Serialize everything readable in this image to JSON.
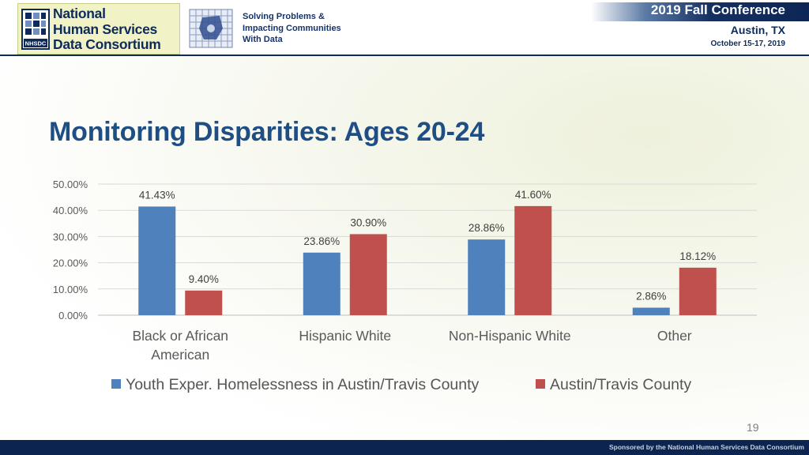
{
  "header": {
    "logo": {
      "lines": [
        "National",
        "Human Services",
        "Data Consortium"
      ],
      "mark_text": "NHSDC"
    },
    "tagline": [
      "Solving Problems &",
      "Impacting Communities",
      "With Data"
    ],
    "conference": {
      "title": "2019 Fall Conference",
      "city": "Austin, TX",
      "dates": "October 15-17, 2019"
    }
  },
  "slide": {
    "title": "Monitoring Disparities: Ages 20-24",
    "page_number": "19"
  },
  "footer": {
    "text": "Sponsored by the National Human Services Data Consortium"
  },
  "colors": {
    "series1": "#4f81bd",
    "series2": "#c0504d",
    "title": "#1f4e84",
    "navy": "#0d2b5a"
  },
  "chart_data": {
    "type": "bar",
    "categories": [
      [
        "Black or African",
        "American"
      ],
      [
        "Hispanic White"
      ],
      [
        "Non-Hispanic White"
      ],
      [
        "Other"
      ]
    ],
    "series": [
      {
        "name": "Youth Exper. Homelessness in Austin/Travis County",
        "values": [
          41.43,
          23.86,
          28.86,
          2.86
        ],
        "labels": [
          "41.43%",
          "23.86%",
          "28.86%",
          "2.86%"
        ]
      },
      {
        "name": "Austin/Travis County",
        "values": [
          9.4,
          30.9,
          41.6,
          18.12
        ],
        "labels": [
          "9.40%",
          "30.90%",
          "41.60%",
          "18.12%"
        ]
      }
    ],
    "ylim": [
      0,
      50
    ],
    "yticks": [
      0,
      10,
      20,
      30,
      40,
      50
    ],
    "ytick_labels": [
      "0.00%",
      "10.00%",
      "20.00%",
      "30.00%",
      "40.00%",
      "50.00%"
    ],
    "grid": true,
    "legend_position": "bottom"
  }
}
